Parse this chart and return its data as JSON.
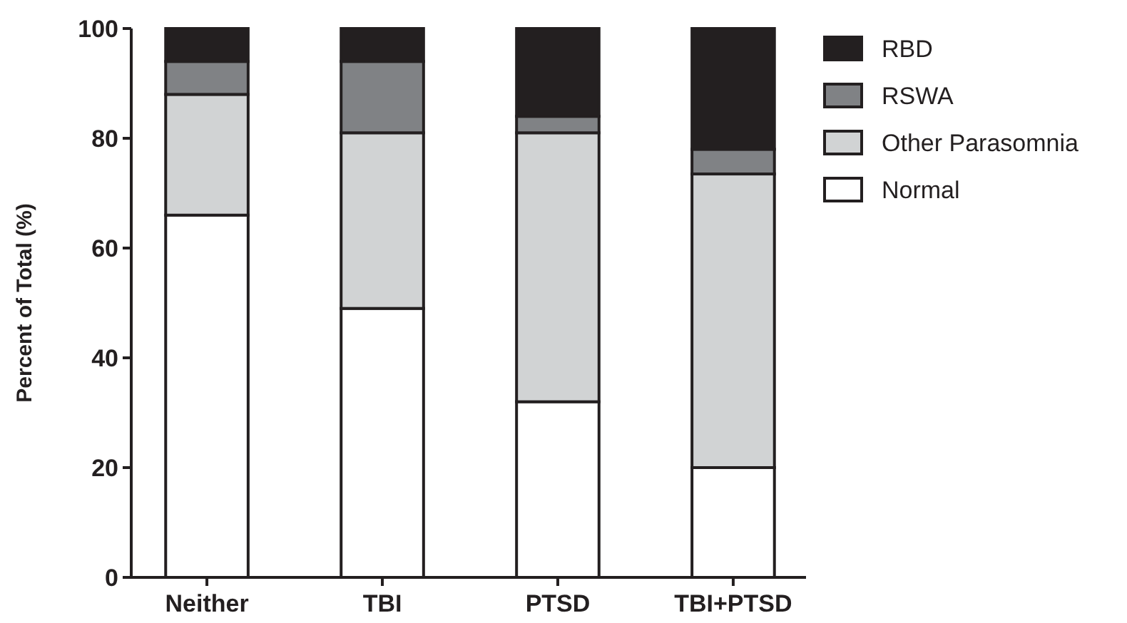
{
  "chart_data": {
    "type": "bar",
    "stacked": true,
    "ylabel": "Percent of Total (%)",
    "categories": [
      "Neither",
      "TBI",
      "PTSD",
      "TBI+PTSD"
    ],
    "series": [
      {
        "name": "Normal",
        "color": "#ffffff",
        "values": [
          66,
          49,
          32,
          20
        ]
      },
      {
        "name": "Other Parasomnia",
        "color": "#d1d3d4",
        "values": [
          22,
          32,
          49,
          53.5
        ]
      },
      {
        "name": "RSWA",
        "color": "#808285",
        "values": [
          6,
          13,
          3,
          4.5
        ]
      },
      {
        "name": "RBD",
        "color": "#231f20",
        "values": [
          6,
          6,
          16,
          22
        ]
      }
    ],
    "ylim": [
      0,
      100
    ],
    "yticks": [
      0,
      20,
      40,
      60,
      80,
      100
    ],
    "grid": false,
    "legend": "top right"
  }
}
